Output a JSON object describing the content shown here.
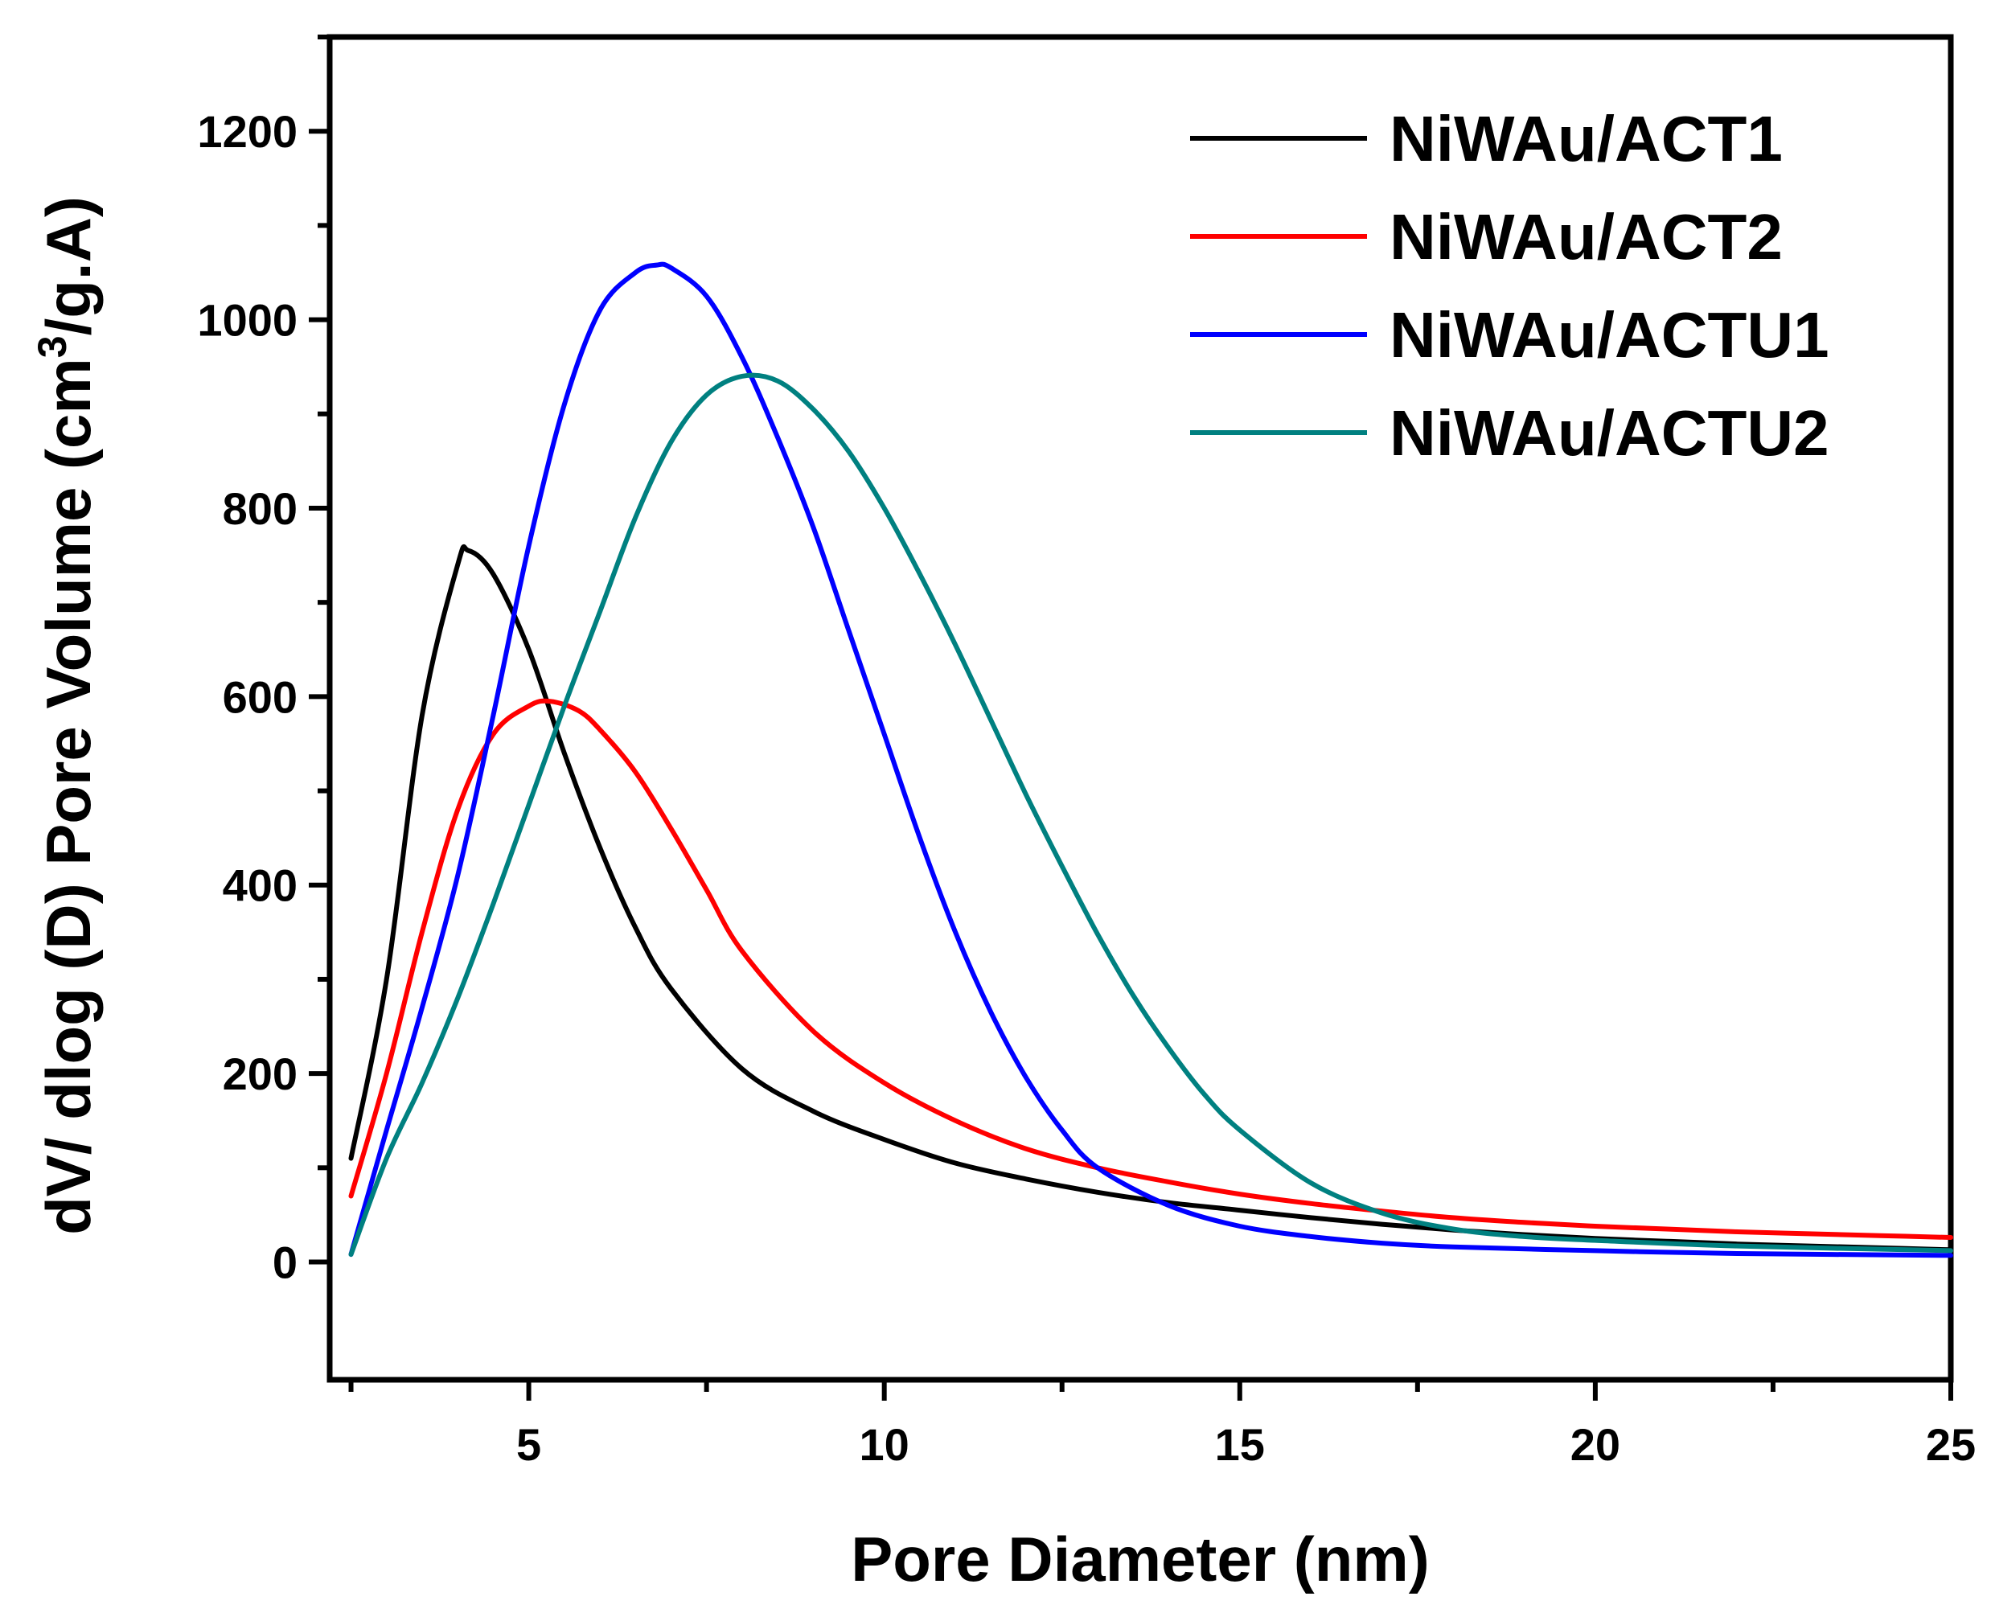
{
  "chart_data": {
    "type": "line",
    "title": "",
    "xlabel": "Pore Diameter (nm)",
    "ylabel_main": "dV/ dlog (D) Pore Volume  (cm",
    "ylabel_sup": "3",
    "ylabel_tail": "/g.A)",
    "xlim": [
      2.2,
      25
    ],
    "ylim": [
      -125,
      1300
    ],
    "xticks": [
      5,
      10,
      15,
      20,
      25
    ],
    "yticks": [
      0,
      200,
      400,
      600,
      800,
      1000,
      1200
    ],
    "legend_position": "top-right",
    "series": [
      {
        "name": "NiWAu/ACT1",
        "color": "#000000",
        "x": [
          2.5,
          3.0,
          3.5,
          4.0,
          4.15,
          4.5,
          5.0,
          5.5,
          6.0,
          6.5,
          7.0,
          8.0,
          9.0,
          10.0,
          11.0,
          12.0,
          13.0,
          14.0,
          15.0,
          16.0,
          17.0,
          18.0,
          19.0,
          20.0,
          21.0,
          22.0,
          23.0,
          24.0,
          25.0
        ],
        "y": [
          110,
          300,
          580,
          740,
          755,
          730,
          650,
          540,
          440,
          355,
          290,
          205,
          160,
          130,
          105,
          88,
          74,
          63,
          55,
          47,
          40,
          34,
          29,
          25,
          22,
          19,
          17,
          15,
          13
        ]
      },
      {
        "name": "NiWAu/ACT2",
        "color": "#ff0000",
        "x": [
          2.5,
          3.0,
          3.5,
          4.0,
          4.5,
          5.0,
          5.3,
          5.7,
          6.0,
          6.5,
          7.0,
          7.5,
          8.0,
          9.0,
          10.0,
          11.0,
          12.0,
          13.0,
          14.0,
          15.0,
          16.0,
          17.0,
          18.0,
          19.0,
          20.0,
          21.0,
          22.0,
          23.0,
          24.0,
          25.0
        ],
        "y": [
          70,
          200,
          350,
          480,
          560,
          590,
          595,
          585,
          565,
          520,
          460,
          395,
          330,
          245,
          190,
          150,
          120,
          100,
          85,
          72,
          62,
          54,
          47,
          42,
          38,
          35,
          32,
          30,
          28,
          26
        ]
      },
      {
        "name": "NiWAu/ACTU1",
        "color": "#0000ff",
        "x": [
          2.5,
          3.0,
          3.5,
          4.0,
          4.5,
          5.0,
          5.5,
          6.0,
          6.5,
          6.8,
          7.0,
          7.5,
          8.0,
          8.5,
          9.0,
          9.5,
          10.0,
          10.5,
          11.0,
          11.5,
          12.0,
          12.5,
          13.0,
          14.0,
          15.0,
          16.0,
          17.0,
          18.0,
          20.0,
          22.0,
          25.0
        ],
        "y": [
          8,
          140,
          270,
          410,
          580,
          760,
          910,
          1010,
          1050,
          1058,
          1055,
          1025,
          960,
          875,
          780,
          670,
          560,
          450,
          350,
          265,
          195,
          140,
          100,
          60,
          38,
          27,
          20,
          16,
          12,
          9,
          7
        ]
      },
      {
        "name": "NiWAu/ACTU2",
        "color": "#008080",
        "x": [
          2.5,
          3.0,
          3.5,
          4.0,
          4.5,
          5.0,
          5.5,
          6.0,
          6.5,
          7.0,
          7.5,
          8.0,
          8.5,
          9.0,
          9.5,
          10.0,
          10.5,
          11.0,
          11.5,
          12.0,
          12.5,
          13.0,
          13.5,
          14.0,
          14.5,
          15.0,
          16.0,
          17.0,
          18.0,
          19.0,
          20.0,
          22.0,
          25.0
        ],
        "y": [
          8,
          110,
          190,
          280,
          380,
          485,
          590,
          690,
          790,
          870,
          920,
          940,
          935,
          905,
          860,
          800,
          730,
          655,
          575,
          495,
          420,
          348,
          283,
          227,
          178,
          140,
          84,
          52,
          35,
          27,
          23,
          17,
          12
        ]
      }
    ]
  }
}
